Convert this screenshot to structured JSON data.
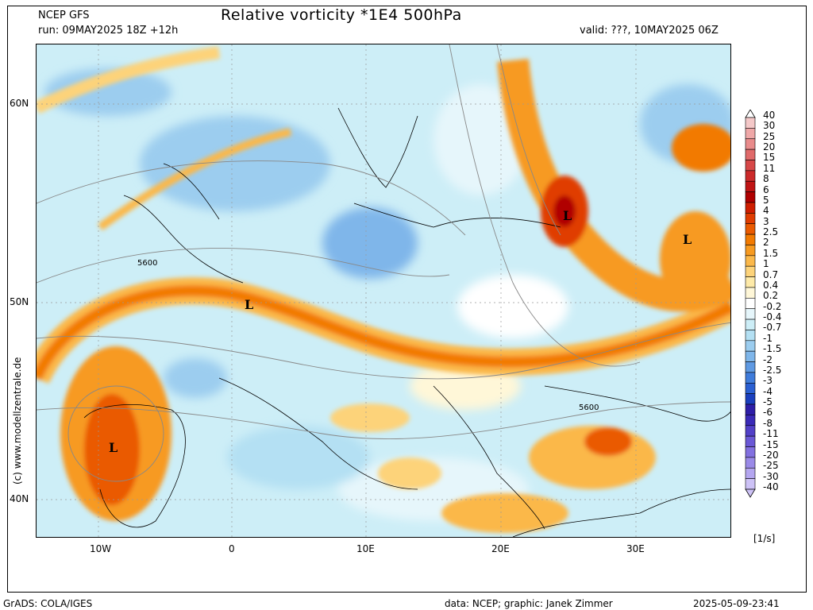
{
  "header": {
    "model": "NCEP GFS",
    "run": "run: 09MAY2025 18Z +12h",
    "title": "Relative vorticity *1E4 500hPa",
    "valid": "valid: ???, 10MAY2025 06Z"
  },
  "axes": {
    "lat_labels": [
      "60N",
      "50N",
      "40N"
    ],
    "lon_labels": [
      "10W",
      "0",
      "10E",
      "20E",
      "30E"
    ]
  },
  "annotations": {
    "lows": [
      "L",
      "L",
      "L",
      "L"
    ],
    "contours": [
      "5600",
      "5600"
    ]
  },
  "credit": "(c) www.modellzentrale.de",
  "colorbar": {
    "units": "[1/s]",
    "levels": [
      "40",
      "30",
      "25",
      "20",
      "15",
      "11",
      "8",
      "6",
      "5",
      "4",
      "3",
      "2.5",
      "2",
      "1.5",
      "1",
      "0.7",
      "0.4",
      "0.2",
      "-0.2",
      "-0.4",
      "-0.7",
      "-1",
      "-1.5",
      "-2",
      "-2.5",
      "-3",
      "-4",
      "-5",
      "-6",
      "-8",
      "-11",
      "-15",
      "-20",
      "-25",
      "-30",
      "-40"
    ],
    "colors": [
      "#ffffff",
      "#f4c8c8",
      "#efa8a8",
      "#e98b8b",
      "#e06a6a",
      "#d74848",
      "#cc2a2a",
      "#c01414",
      "#b00000",
      "#cf1e00",
      "#e03c00",
      "#ea5a00",
      "#f27a00",
      "#f79a20",
      "#fbb84a",
      "#fdd37a",
      "#feeaa8",
      "#fff7d8",
      "#ffffff",
      "#e6f6fb",
      "#cdeef7",
      "#b4e0f3",
      "#9ccdef",
      "#7fb6ea",
      "#5f9ae3",
      "#3f7cdb",
      "#2a5fd2",
      "#1a3fbe",
      "#2e1ea8",
      "#3a2ab8",
      "#5240c8",
      "#6a58d6",
      "#8270e0",
      "#9a8ae8",
      "#b4a6f0",
      "#cdc2f6"
    ]
  },
  "footer": {
    "left": "GrADS: COLA/IGES",
    "data": "data: NCEP; graphic: Janek Zimmer",
    "timestamp": "2025-05-09-23:41"
  }
}
